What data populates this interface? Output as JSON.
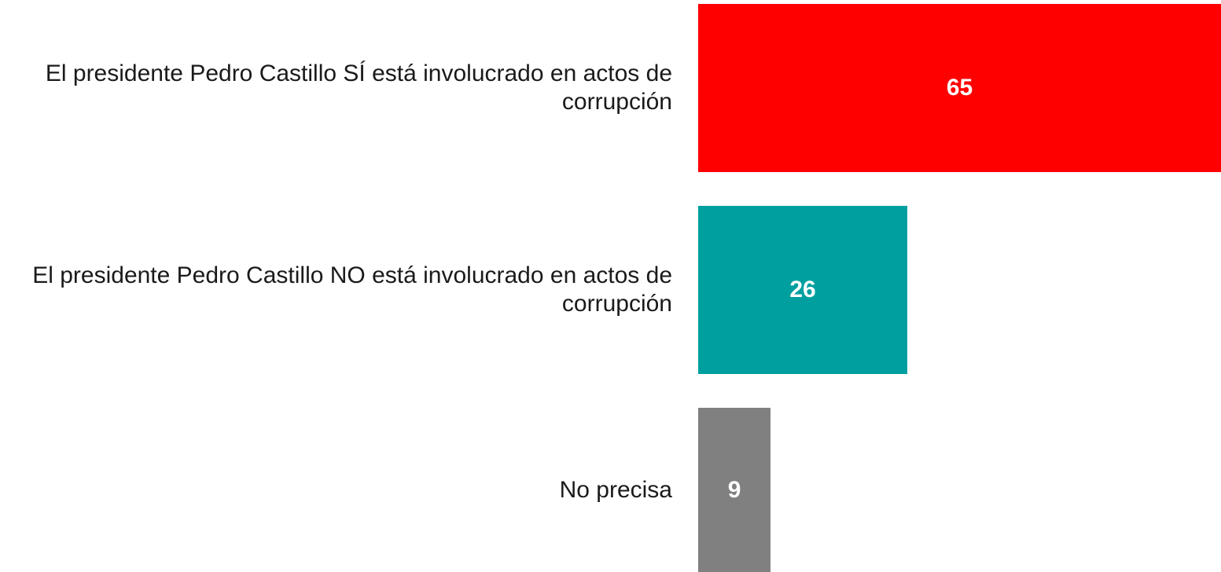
{
  "chart_data": {
    "type": "bar",
    "orientation": "horizontal",
    "categories": [
      "El presidente Pedro Castillo SÍ está involucrado en actos de corrupción",
      "El presidente Pedro Castillo NO está involucrado en actos de corrupción",
      "No precisa"
    ],
    "values": [
      65,
      26,
      9
    ],
    "colors": [
      "#ff0000",
      "#009f9f",
      "#808080"
    ],
    "xlim": [
      0,
      65
    ]
  }
}
